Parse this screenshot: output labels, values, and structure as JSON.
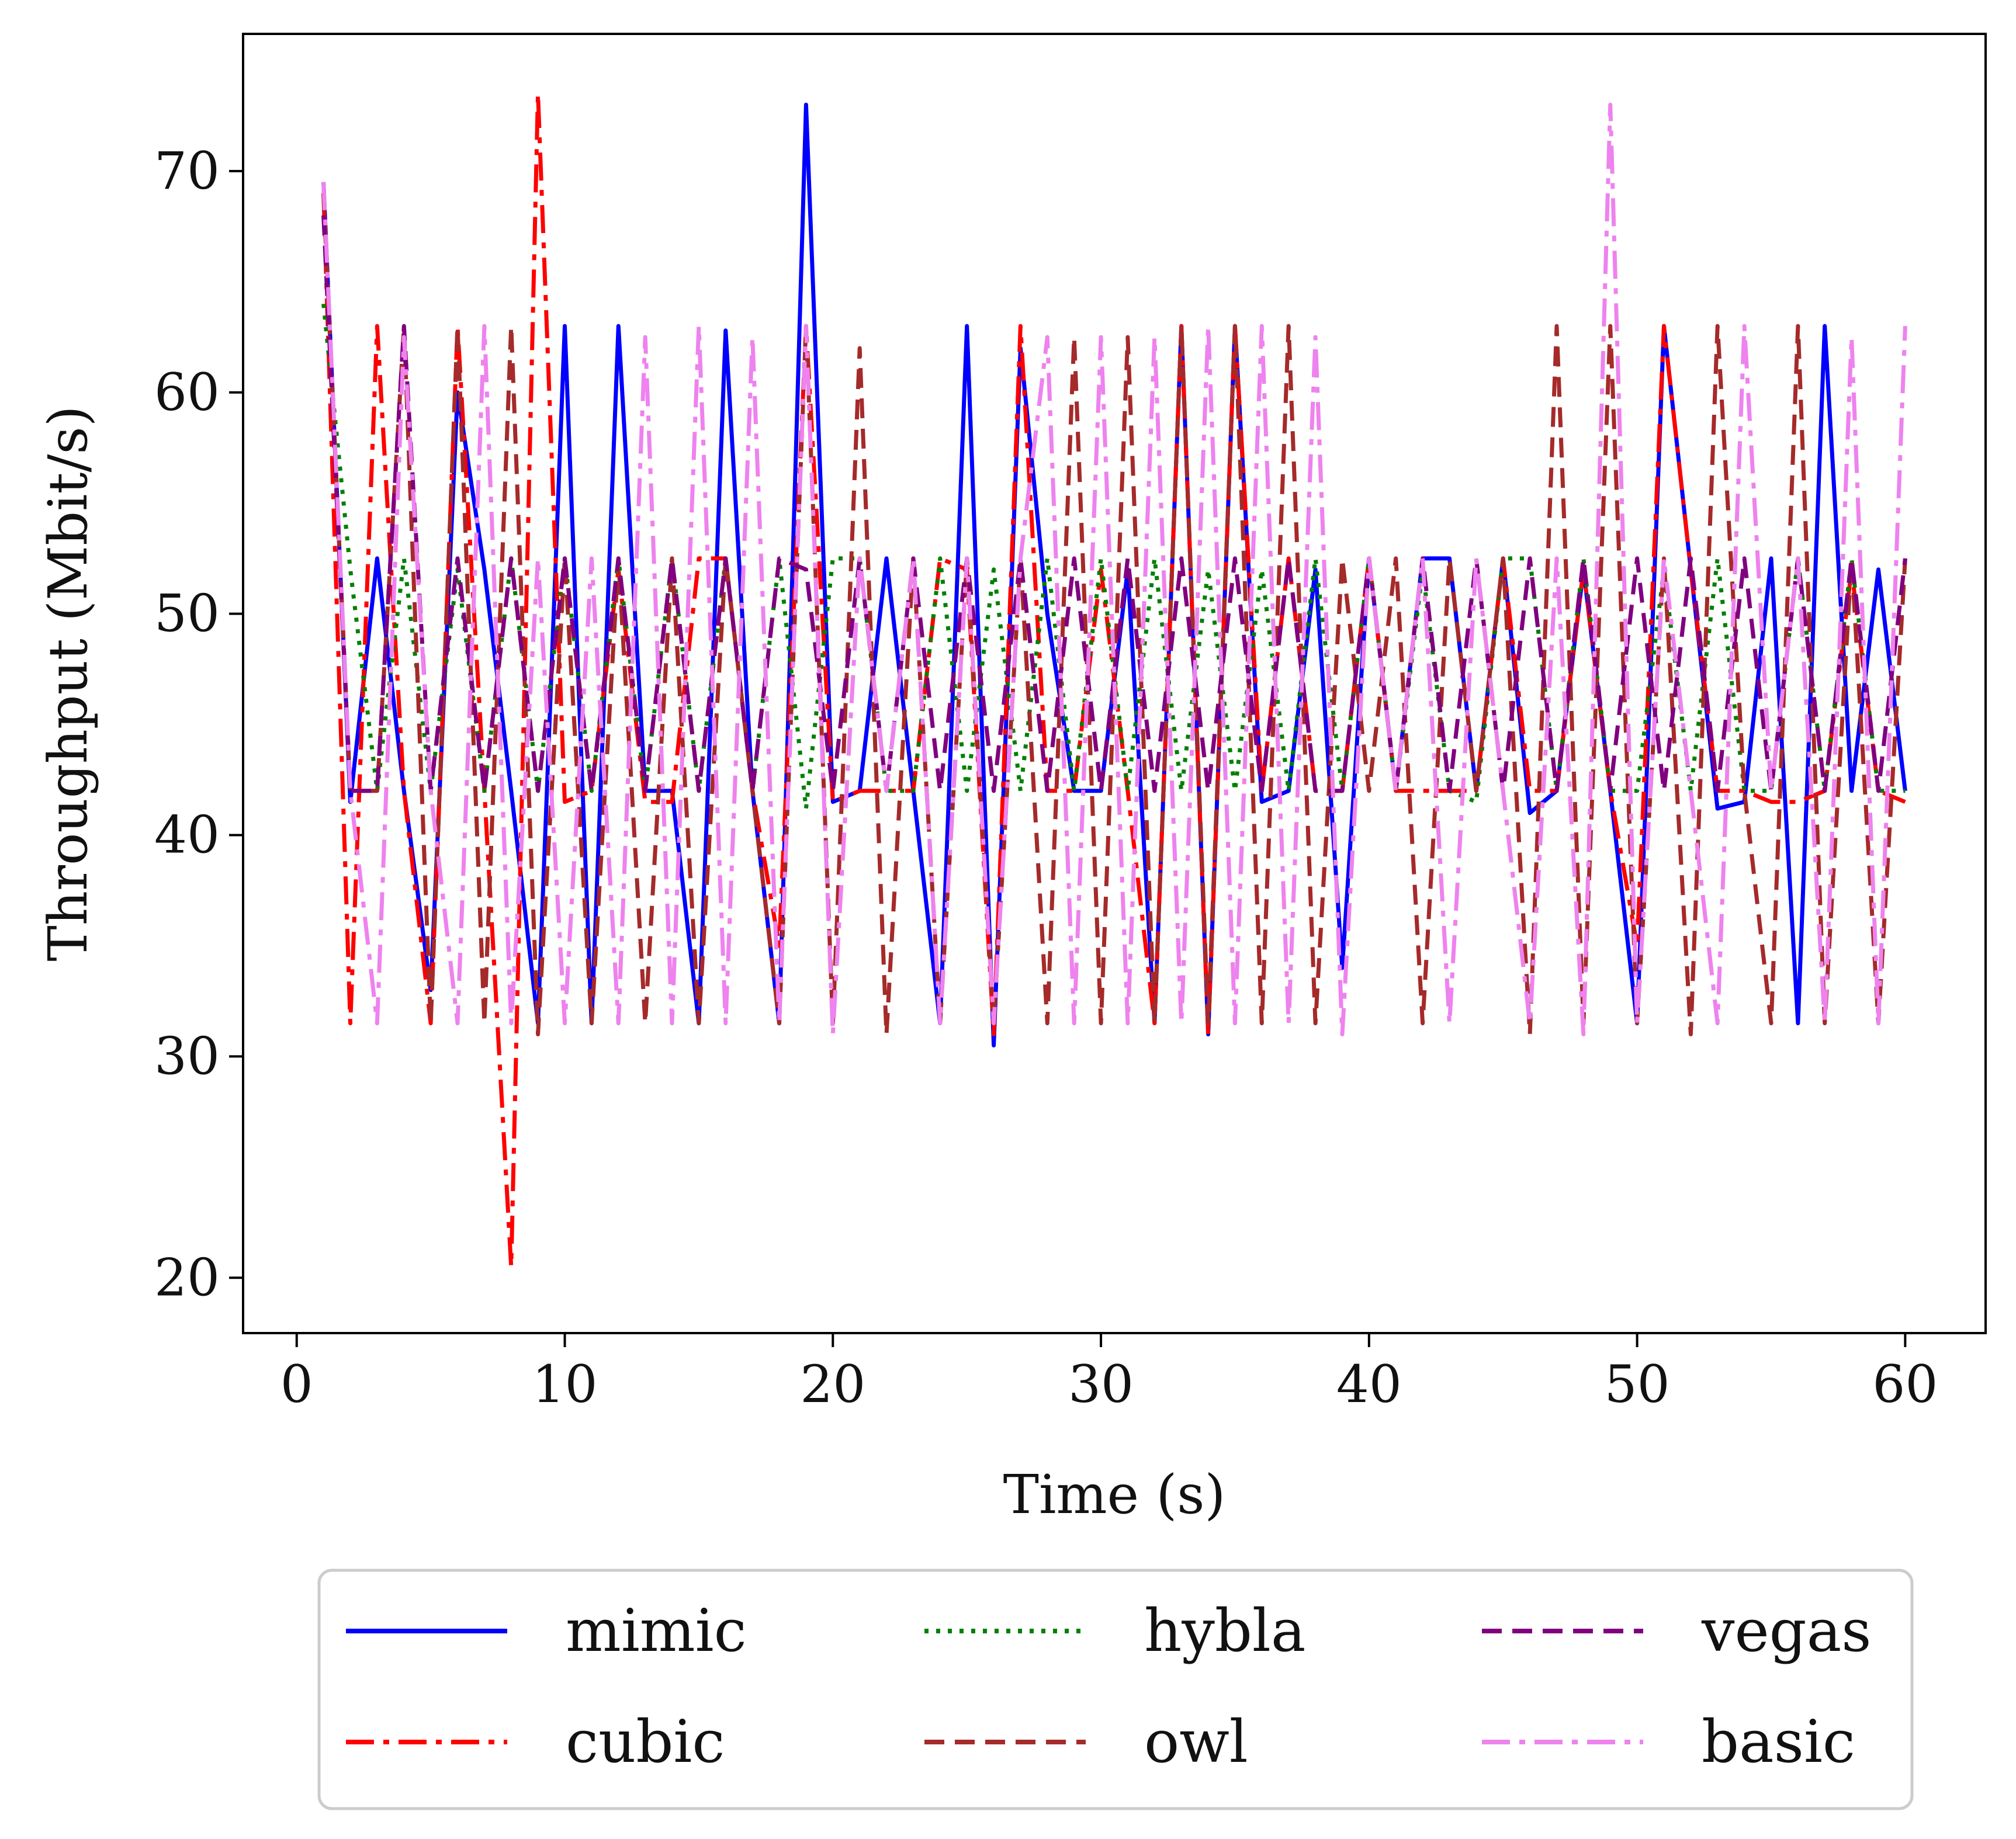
{
  "chart_data": {
    "type": "line",
    "title": "",
    "xlabel": "Time (s)",
    "ylabel": "Throughput (Mbit/s)",
    "xlim": [
      -2,
      63
    ],
    "ylim": [
      17.5,
      76.2
    ],
    "xticks": [
      0,
      10,
      20,
      30,
      40,
      50,
      60
    ],
    "yticks": [
      20,
      30,
      40,
      50,
      60,
      70
    ],
    "grid": false,
    "legend_position": "bottom",
    "legend_columns": 3,
    "x": [
      1,
      2,
      3,
      4,
      5,
      6,
      7,
      8,
      9,
      10,
      11,
      12,
      13,
      14,
      15,
      16,
      17,
      18,
      19,
      20,
      21,
      22,
      23,
      24,
      25,
      26,
      27,
      28,
      29,
      30,
      31,
      32,
      33,
      34,
      35,
      36,
      37,
      38,
      39,
      40,
      41,
      42,
      43,
      44,
      45,
      46,
      47,
      48,
      49,
      50,
      51,
      52,
      53,
      54,
      55,
      56,
      57,
      58,
      59,
      60
    ],
    "series": [
      {
        "name": "mimic",
        "color": "#0000ff",
        "dash": "solid",
        "values": [
          69.5,
          41.5,
          52.5,
          42,
          33,
          60,
          52,
          42,
          31.5,
          63,
          31.5,
          63,
          42,
          42,
          31.5,
          62.8,
          42,
          31.5,
          73,
          41.5,
          42,
          52.5,
          42,
          31.5,
          63,
          30.5,
          62,
          50,
          42,
          42,
          52,
          31.5,
          63,
          31,
          63,
          41.5,
          42,
          52,
          34,
          52.5,
          42,
          52.5,
          52.5,
          42,
          52.5,
          41,
          42,
          52,
          42,
          31.5,
          63,
          52,
          41.2,
          41.5,
          52.5,
          31.5,
          63,
          42,
          52,
          42
        ]
      },
      {
        "name": "cubic",
        "color": "#ff0000",
        "dash": "dashdot",
        "values": [
          69,
          31.5,
          63,
          42,
          31.5,
          63,
          42,
          20.5,
          73.5,
          41.5,
          42,
          52,
          41.5,
          41.5,
          52.5,
          52.5,
          42,
          35,
          63,
          41.5,
          42,
          42,
          42,
          52.5,
          52,
          31,
          63,
          42,
          42,
          52,
          42,
          31.5,
          63,
          31,
          63,
          42,
          52.5,
          42,
          42,
          52.5,
          42,
          42,
          42,
          42,
          52.5,
          42,
          42,
          52,
          42,
          35,
          63,
          52,
          42,
          42,
          41.5,
          41.5,
          42,
          52,
          42,
          41.5
        ]
      },
      {
        "name": "hybla",
        "color": "#008000",
        "dash": "dotted",
        "values": [
          64,
          52,
          42,
          52.5,
          42,
          52,
          42,
          52.5,
          42,
          52.5,
          42,
          52.5,
          42,
          52.5,
          42,
          52.5,
          42,
          52.5,
          41.2,
          52.5,
          52.5,
          42,
          42,
          52.5,
          42,
          52,
          42,
          52.5,
          42,
          52.5,
          42,
          52.5,
          42,
          52,
          42,
          52,
          42,
          52.5,
          42,
          52.5,
          42,
          52,
          42,
          41.5,
          52.5,
          52.5,
          42,
          52.5,
          42,
          42,
          52,
          42,
          52.5,
          42,
          42,
          52.5,
          42,
          52.5,
          42,
          42
        ]
      },
      {
        "name": "owl",
        "color": "#a52a2a",
        "dash": "dashed",
        "values": [
          69,
          42,
          42,
          63,
          31.5,
          63,
          31.5,
          63,
          31,
          52.5,
          31.5,
          52.5,
          31.5,
          52.5,
          31.5,
          52.5,
          42,
          31.5,
          63,
          31.5,
          62,
          31,
          52.5,
          31.5,
          52.5,
          31.5,
          52.5,
          31.5,
          62.5,
          31.5,
          62.5,
          31.5,
          63,
          31.5,
          63,
          31.5,
          63,
          31.5,
          52.5,
          42,
          52.5,
          31.5,
          52.5,
          42,
          52.5,
          31,
          63,
          31.5,
          63,
          31.5,
          52.5,
          31,
          63,
          42,
          31.5,
          63,
          31.5,
          52.5,
          31.5,
          52.5
        ]
      },
      {
        "name": "vegas",
        "color": "#800080",
        "dash": "dashed",
        "values": [
          68,
          42,
          42,
          63,
          42,
          52.5,
          42,
          52.5,
          42,
          52.5,
          42,
          52.5,
          42,
          52.5,
          42,
          52.5,
          42,
          52.5,
          52,
          42,
          52.5,
          42,
          52.5,
          42,
          52.5,
          42,
          52.5,
          42,
          52.5,
          42,
          52.5,
          42,
          52.5,
          42,
          52.5,
          42,
          52.5,
          42,
          42,
          52.5,
          42,
          52.5,
          42,
          52.5,
          42,
          52.5,
          42,
          52.5,
          42,
          52.5,
          42,
          52.5,
          42,
          52.5,
          42,
          52.5,
          42,
          52.5,
          42,
          52.5
        ]
      },
      {
        "name": "basic",
        "color": "#ee82ee",
        "dash": "dashdot",
        "values": [
          69.5,
          42,
          31.5,
          62.5,
          42,
          31.5,
          63,
          31.5,
          52.5,
          31.5,
          52.5,
          31.5,
          62.5,
          31.5,
          63,
          31.5,
          62.5,
          31.5,
          63,
          31,
          52.5,
          42,
          52.5,
          31.5,
          52.5,
          31.5,
          52.5,
          62.5,
          31.5,
          62.5,
          31.5,
          62.5,
          31.5,
          63,
          31.5,
          63,
          31.5,
          62.5,
          31,
          52.5,
          42,
          52.5,
          31.5,
          52.5,
          42,
          31.5,
          52.5,
          31,
          73,
          31.5,
          52.5,
          42,
          31.5,
          63,
          42,
          52.5,
          31.5,
          62.5,
          31.5,
          63
        ]
      }
    ]
  }
}
